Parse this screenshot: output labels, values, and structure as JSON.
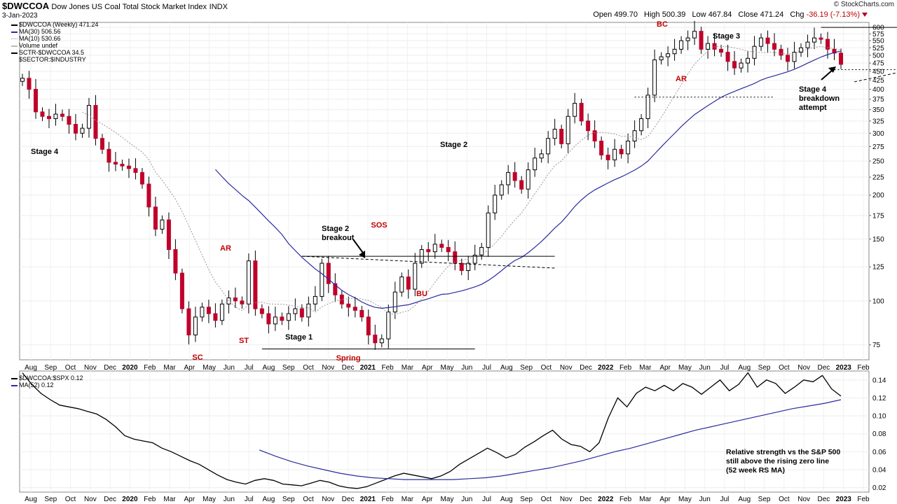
{
  "header": {
    "symbol": "$DWCCOA",
    "name": "Dow Jones US Coal Total Stock Market Index",
    "exchange": "INDX",
    "date": "3-Jan-2023",
    "open_label": "Open",
    "open": "499.70",
    "high_label": "High",
    "high": "500.39",
    "low_label": "Low",
    "low": "467.84",
    "close_label": "Close",
    "close": "471.24",
    "chg_label": "Chg",
    "chg": "-36.19 (-7.13%)",
    "brand": "© StockCharts.com"
  },
  "legend": {
    "main": "$DWCCOA (Weekly) 471.24",
    "ma30": "MA(30) 506.56",
    "ma10": "MA(10) 530.66",
    "volume": "Volume undef",
    "sctr": "SCTR-$DWCCOA 34.5",
    "sector": "$SECTOR:$INDUSTRY",
    "rs": "$DWCCOA:$SPX 0.12",
    "rs_ma": "MA(52) 0.12"
  },
  "colors": {
    "up": "#ffffff",
    "down": "#c0002a",
    "ma30": "#2b2b9e",
    "ma10": "#999999",
    "rs": "#000000",
    "annotation": "#c00000"
  },
  "annotations": {
    "red": [
      "SC",
      "AR",
      "ST",
      "Spring",
      "SOS",
      "BU",
      "BC",
      "AR"
    ],
    "black": [
      "Stage 4",
      "Stage 1",
      "Stage 2",
      "Stage 3",
      "Stage 2 breakout",
      "Stage 4 breakdown attempt"
    ],
    "rs_note": "Relative strength vs the S&P 500 still above the rising zero line (52 week RS MA)"
  },
  "chart_data": [
    {
      "type": "candlestick",
      "title": "$DWCCOA (Weekly)",
      "x_ticks": [
        "Aug",
        "Sep",
        "Oct",
        "Nov",
        "Dec",
        "2020",
        "Feb",
        "Mar",
        "Apr",
        "May",
        "Jun",
        "Jul",
        "Aug",
        "Sep",
        "Oct",
        "Nov",
        "Dec",
        "2021",
        "Feb",
        "Mar",
        "Apr",
        "May",
        "Jun",
        "Jul",
        "Aug",
        "Sep",
        "Oct",
        "Nov",
        "Dec",
        "2022",
        "Feb",
        "Mar",
        "Apr",
        "May",
        "Jun",
        "Jul",
        "Aug",
        "Sep",
        "Oct",
        "Nov",
        "Dec",
        "2023",
        "Feb"
      ],
      "y_ticks": [
        75,
        100,
        125,
        150,
        175,
        200,
        225,
        250,
        275,
        300,
        325,
        350,
        375,
        400,
        425,
        450,
        475,
        500,
        525,
        550,
        575,
        600
      ],
      "y_scale": "log",
      "ylim": [
        68,
        620
      ],
      "closes": [
        430,
        400,
        345,
        335,
        330,
        340,
        335,
        318,
        300,
        310,
        360,
        290,
        270,
        248,
        245,
        242,
        238,
        232,
        215,
        185,
        160,
        170,
        140,
        120,
        95,
        80,
        90,
        96,
        92,
        88,
        98,
        102,
        100,
        98,
        130,
        95,
        92,
        86,
        90,
        88,
        92,
        95,
        90,
        98,
        103,
        128,
        112,
        104,
        98,
        96,
        94,
        90,
        80,
        76,
        78,
        93,
        106,
        117,
        108,
        128,
        140,
        138,
        145,
        142,
        138,
        128,
        122,
        128,
        135,
        142,
        178,
        200,
        214,
        232,
        220,
        208,
        236,
        255,
        262,
        290,
        308,
        280,
        335,
        365,
        325,
        305,
        285,
        260,
        252,
        270,
        262,
        285,
        305,
        330,
        385,
        485,
        495,
        505,
        520,
        550,
        560,
        585,
        520,
        540,
        520,
        510,
        480,
        460,
        475,
        490,
        530,
        560,
        540,
        520,
        500,
        480,
        510,
        525,
        545,
        560,
        555,
        520,
        507,
        471
      ],
      "ma10_last": 530.66,
      "ma30_last": 506.56,
      "levels": {
        "trading_range_top": 134,
        "trading_range_bottom": 73,
        "stage2_resistance": 380,
        "stage3_top": 600,
        "stage3_bottom": 455
      }
    },
    {
      "type": "line",
      "title": "$DWCCOA:$SPX",
      "y_ticks": [
        0.02,
        0.04,
        0.06,
        0.08,
        0.1,
        0.12,
        0.14
      ],
      "ylim": [
        0.015,
        0.15
      ],
      "series": [
        {
          "name": "$DWCCOA:$SPX",
          "values": [
            0.148,
            0.135,
            0.125,
            0.118,
            0.112,
            0.11,
            0.108,
            0.105,
            0.102,
            0.096,
            0.088,
            0.078,
            0.074,
            0.072,
            0.07,
            0.064,
            0.06,
            0.055,
            0.05,
            0.046,
            0.04,
            0.034,
            0.029,
            0.026,
            0.024,
            0.028,
            0.03,
            0.028,
            0.024,
            0.023,
            0.022,
            0.025,
            0.028,
            0.026,
            0.022,
            0.02,
            0.019,
            0.021,
            0.025,
            0.029,
            0.033,
            0.036,
            0.034,
            0.032,
            0.03,
            0.033,
            0.038,
            0.046,
            0.052,
            0.058,
            0.064,
            0.059,
            0.053,
            0.057,
            0.065,
            0.071,
            0.078,
            0.084,
            0.074,
            0.068,
            0.066,
            0.06,
            0.07,
            0.098,
            0.12,
            0.11,
            0.125,
            0.132,
            0.128,
            0.134,
            0.128,
            0.136,
            0.132,
            0.124,
            0.132,
            0.14,
            0.128,
            0.135,
            0.148,
            0.132,
            0.14,
            0.136,
            0.125,
            0.132,
            0.14,
            0.138,
            0.145,
            0.13,
            0.122
          ]
        },
        {
          "name": "MA(52)",
          "values": [
            0.062,
            0.055,
            0.049,
            0.044,
            0.04,
            0.036,
            0.033,
            0.031,
            0.03,
            0.029,
            0.029,
            0.029,
            0.029,
            0.03,
            0.031,
            0.033,
            0.036,
            0.039,
            0.042,
            0.046,
            0.05,
            0.055,
            0.06,
            0.064,
            0.069,
            0.074,
            0.079,
            0.084,
            0.088,
            0.092,
            0.096,
            0.1,
            0.104,
            0.108,
            0.111,
            0.114,
            0.118
          ]
        }
      ]
    }
  ]
}
